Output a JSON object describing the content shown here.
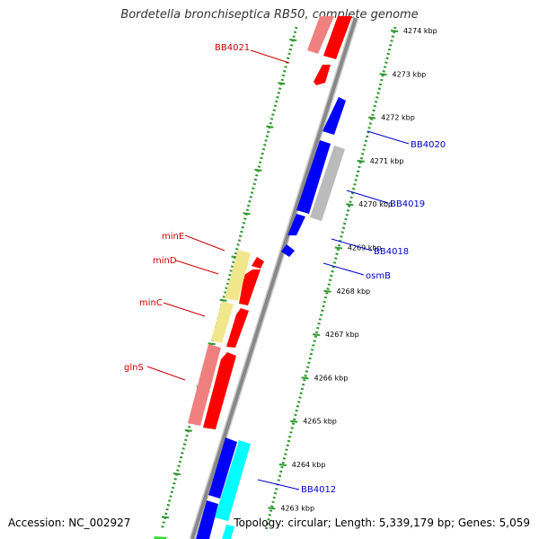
{
  "title": "Bordetella bronchiseptica RB50, complete genome",
  "accession": "Accession: NC_002927",
  "topology": "Topology: circular; Length: 5,339,179 bp; Genes: 5,059",
  "colors": {
    "strand_plus": "#ff0000",
    "strand_minus": "#0000ff",
    "rna": "#f08080",
    "pseudo": "#bbbbbb",
    "special": "#f0e68c",
    "cyan": "#00ffff",
    "green": "#33dd33",
    "label_plus": "#cc0000",
    "label_minus": "#0000cc",
    "backbone": "#888888",
    "ruler": "#339933"
  },
  "ticks": [
    "4274 kbp",
    "4273 kbp",
    "4272 kbp",
    "4271 kbp",
    "4270 kbp",
    "4269 kbp",
    "4268 kbp",
    "4267 kbp",
    "4266 kbp",
    "4265 kbp",
    "4264 kbp",
    "4263 kbp"
  ],
  "gene_labels": [
    {
      "text": "BB4021",
      "side": "left"
    },
    {
      "text": "BB4020",
      "side": "right"
    },
    {
      "text": "BB4019",
      "side": "right"
    },
    {
      "text": "BB4018",
      "side": "right"
    },
    {
      "text": "osmB",
      "side": "right"
    },
    {
      "text": "minE",
      "side": "left"
    },
    {
      "text": "minD",
      "side": "left"
    },
    {
      "text": "minC",
      "side": "left"
    },
    {
      "text": "glnS",
      "side": "left"
    },
    {
      "text": "BB4012",
      "side": "right"
    }
  ]
}
